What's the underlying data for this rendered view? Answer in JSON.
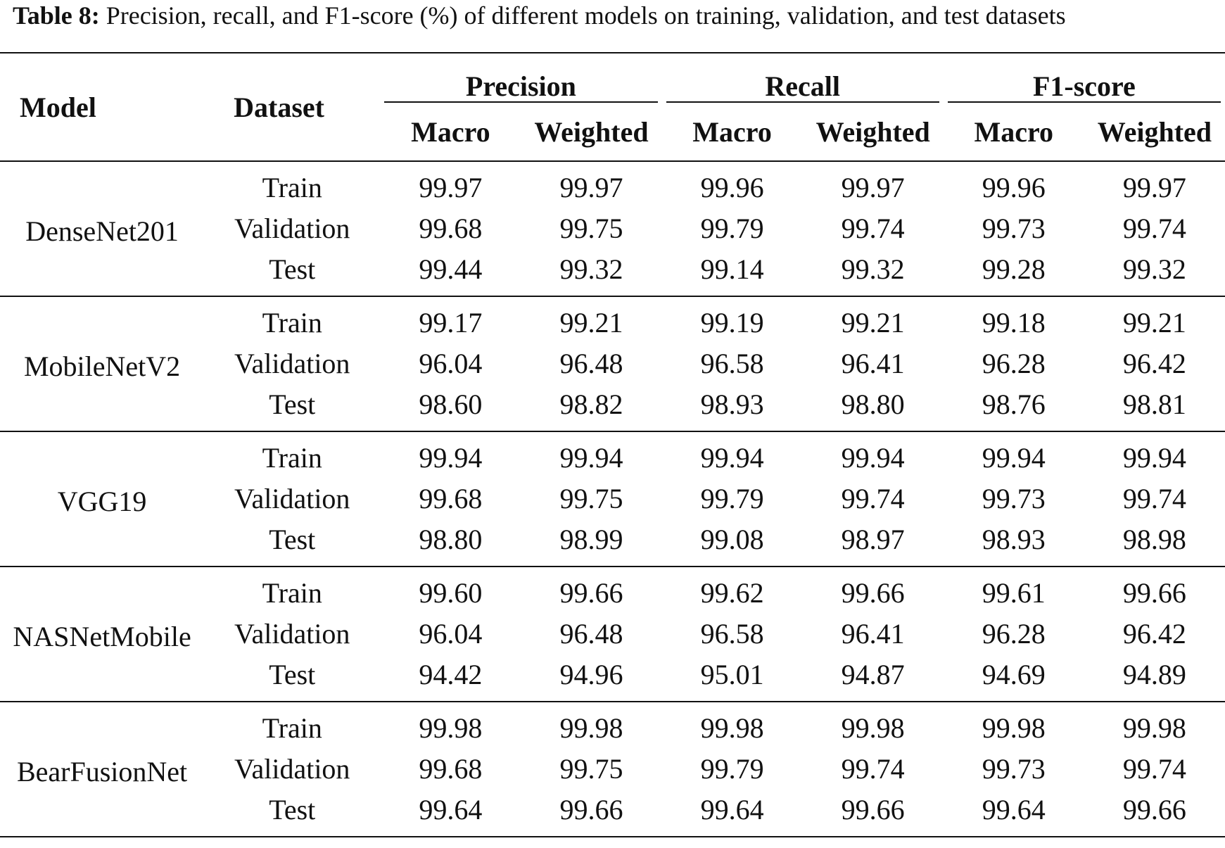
{
  "caption": {
    "label": "Table 8:",
    "text": "Precision, recall, and F1-score (%) of different models on training, validation, and test datasets"
  },
  "table": {
    "headers": {
      "model": "Model",
      "dataset": "Dataset",
      "groups": [
        "Precision",
        "Recall",
        "F1-score"
      ],
      "subheaders": [
        "Macro",
        "Weighted",
        "Macro",
        "Weighted",
        "Macro",
        "Weighted"
      ]
    },
    "models": [
      {
        "name": "DenseNet201",
        "rows": [
          {
            "dataset": "Train",
            "values": [
              "99.97",
              "99.97",
              "99.96",
              "99.97",
              "99.96",
              "99.97"
            ]
          },
          {
            "dataset": "Validation",
            "values": [
              "99.68",
              "99.75",
              "99.79",
              "99.74",
              "99.73",
              "99.74"
            ]
          },
          {
            "dataset": "Test",
            "values": [
              "99.44",
              "99.32",
              "99.14",
              "99.32",
              "99.28",
              "99.32"
            ]
          }
        ]
      },
      {
        "name": "MobileNetV2",
        "rows": [
          {
            "dataset": "Train",
            "values": [
              "99.17",
              "99.21",
              "99.19",
              "99.21",
              "99.18",
              "99.21"
            ]
          },
          {
            "dataset": "Validation",
            "values": [
              "96.04",
              "96.48",
              "96.58",
              "96.41",
              "96.28",
              "96.42"
            ]
          },
          {
            "dataset": "Test",
            "values": [
              "98.60",
              "98.82",
              "98.93",
              "98.80",
              "98.76",
              "98.81"
            ]
          }
        ]
      },
      {
        "name": "VGG19",
        "rows": [
          {
            "dataset": "Train",
            "values": [
              "99.94",
              "99.94",
              "99.94",
              "99.94",
              "99.94",
              "99.94"
            ]
          },
          {
            "dataset": "Validation",
            "values": [
              "99.68",
              "99.75",
              "99.79",
              "99.74",
              "99.73",
              "99.74"
            ]
          },
          {
            "dataset": "Test",
            "values": [
              "98.80",
              "98.99",
              "99.08",
              "98.97",
              "98.93",
              "98.98"
            ]
          }
        ]
      },
      {
        "name": "NASNetMobile",
        "rows": [
          {
            "dataset": "Train",
            "values": [
              "99.60",
              "99.66",
              "99.62",
              "99.66",
              "99.61",
              "99.66"
            ]
          },
          {
            "dataset": "Validation",
            "values": [
              "96.04",
              "96.48",
              "96.58",
              "96.41",
              "96.28",
              "96.42"
            ]
          },
          {
            "dataset": "Test",
            "values": [
              "94.42",
              "94.96",
              "95.01",
              "94.87",
              "94.69",
              "94.89"
            ]
          }
        ]
      },
      {
        "name": "BearFusionNet",
        "rows": [
          {
            "dataset": "Train",
            "values": [
              "99.98",
              "99.98",
              "99.98",
              "99.98",
              "99.98",
              "99.98"
            ]
          },
          {
            "dataset": "Validation",
            "values": [
              "99.68",
              "99.75",
              "99.79",
              "99.74",
              "99.73",
              "99.74"
            ]
          },
          {
            "dataset": "Test",
            "values": [
              "99.64",
              "99.66",
              "99.64",
              "99.66",
              "99.64",
              "99.66"
            ]
          }
        ]
      }
    ]
  }
}
